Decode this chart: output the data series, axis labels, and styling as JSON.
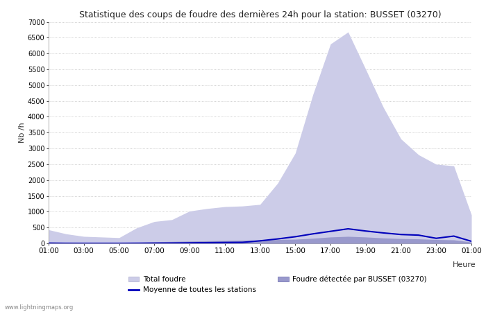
{
  "title": "Statistique des coups de foudre des dernières 24h pour la station: BUSSET (03270)",
  "ylabel": "Nb /h",
  "xlabel": "Heure",
  "ylim": [
    0,
    7000
  ],
  "yticks": [
    0,
    500,
    1000,
    1500,
    2000,
    2500,
    3000,
    3500,
    4000,
    4500,
    5000,
    5500,
    6000,
    6500,
    7000
  ],
  "xtick_labels": [
    "01:00",
    "03:00",
    "05:00",
    "07:00",
    "09:00",
    "11:00",
    "13:00",
    "15:00",
    "17:00",
    "19:00",
    "21:00",
    "23:00",
    "01:00"
  ],
  "watermark": "www.lightningmaps.org",
  "bg_color": "#ffffff",
  "grid_color": "#aaaaaa",
  "total_foudre_color": "#cccce8",
  "detected_color": "#9999cc",
  "mean_line_color": "#0000bb",
  "hours": [
    1,
    2,
    3,
    4,
    5,
    6,
    7,
    8,
    9,
    10,
    11,
    12,
    13,
    14,
    15,
    16,
    17,
    18,
    19,
    20,
    21,
    22,
    23,
    24,
    25
  ],
  "total_foudre": [
    430,
    300,
    220,
    200,
    180,
    490,
    690,
    750,
    1020,
    1100,
    1160,
    1180,
    1230,
    1900,
    2850,
    4700,
    6300,
    6680,
    5500,
    4300,
    3300,
    2800,
    2500,
    2450,
    900
  ],
  "detected_busset": [
    50,
    30,
    20,
    15,
    10,
    30,
    50,
    60,
    70,
    80,
    90,
    100,
    100,
    120,
    130,
    160,
    200,
    220,
    200,
    170,
    150,
    140,
    120,
    110,
    40
  ],
  "mean_all_stations": [
    3,
    2,
    1,
    1,
    1,
    4,
    6,
    10,
    15,
    22,
    28,
    32,
    80,
    140,
    210,
    300,
    380,
    460,
    390,
    330,
    280,
    260,
    160,
    230,
    65
  ]
}
